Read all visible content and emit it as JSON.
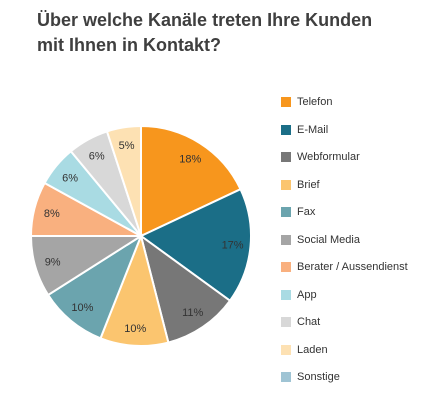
{
  "chart_data": {
    "type": "pie",
    "title": [
      "Über welche Kanäle treten Ihre Kunden",
      "mit Ihnen in Kontakt?"
    ],
    "slices": [
      {
        "name": "Telefon",
        "value": 18,
        "label": "18%",
        "color": "#f7961d"
      },
      {
        "name": "E-Mail",
        "value": 17,
        "label": "17%",
        "color": "#1b6e87"
      },
      {
        "name": "Webformular",
        "value": 11,
        "label": "11%",
        "color": "#777777"
      },
      {
        "name": "Brief",
        "value": 10,
        "label": "10%",
        "color": "#fbc56f"
      },
      {
        "name": "Fax",
        "value": 10,
        "label": "10%",
        "color": "#6ba4ae"
      },
      {
        "name": "Social Media",
        "value": 9,
        "label": "9%",
        "color": "#a5a5a5"
      },
      {
        "name": "Berater / Aussendienst",
        "value": 8,
        "label": "8%",
        "color": "#f9b07f"
      },
      {
        "name": "App",
        "value": 6,
        "label": "6%",
        "color": "#a9dbe3"
      },
      {
        "name": "Chat",
        "value": 6,
        "label": "6%",
        "color": "#d8d8d8"
      },
      {
        "name": "Laden",
        "value": 5,
        "label": "5%",
        "color": "#fde1b3"
      },
      {
        "name": "Sonstige",
        "value": 0,
        "label": "",
        "color": "#9fc4d4"
      }
    ],
    "legend_position": "right"
  }
}
